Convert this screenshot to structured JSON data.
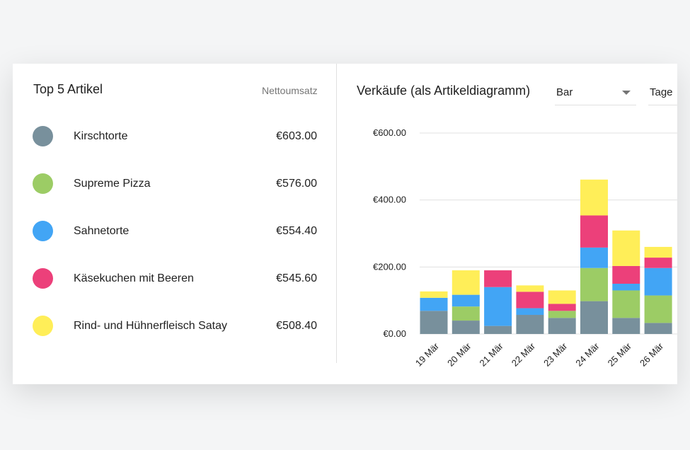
{
  "left_panel": {
    "title": "Top 5 Artikel",
    "column_label": "Nettoumsatz",
    "items": [
      {
        "name": "Kirschtorte",
        "value": "€603.00",
        "color": "#78909c"
      },
      {
        "name": "Supreme Pizza",
        "value": "€576.00",
        "color": "#9ccc65"
      },
      {
        "name": "Sahnetorte",
        "value": "€554.40",
        "color": "#42a5f5"
      },
      {
        "name": "Käsekuchen mit Beeren",
        "value": "€545.60",
        "color": "#ec407a"
      },
      {
        "name": "Rind- und Hühnerfleisch Satay",
        "value": "€508.40",
        "color": "#ffee58"
      }
    ]
  },
  "right_panel": {
    "title": "Verkäufe (als Artikeldiagramm)",
    "chart_type_select": "Bar",
    "period_select": "Tage"
  },
  "chart_data": {
    "type": "bar",
    "stacked": true,
    "categories": [
      "19 Mär",
      "20 Mär",
      "21 Mär",
      "22 Mär",
      "23 Mär",
      "24 Mär",
      "25 Mär",
      "26 Mär"
    ],
    "series": [
      {
        "name": "Kirschtorte",
        "color": "#78909c",
        "values": [
          69,
          40,
          24,
          57,
          48,
          98,
          48,
          33
        ]
      },
      {
        "name": "Supreme Pizza",
        "color": "#9ccc65",
        "values": [
          0,
          42,
          0,
          0,
          21,
          99,
          82,
          82
        ]
      },
      {
        "name": "Sahnetorte",
        "color": "#42a5f5",
        "values": [
          39,
          35,
          116,
          20,
          0,
          61,
          20,
          82
        ]
      },
      {
        "name": "Käsekuchen mit Beeren",
        "color": "#ec407a",
        "values": [
          0,
          0,
          50,
          49,
          21,
          96,
          53,
          31
        ]
      },
      {
        "name": "Rind- und Hühnerfleisch Satay",
        "color": "#ffee58",
        "values": [
          19,
          73,
          0,
          19,
          40,
          107,
          106,
          32
        ]
      }
    ],
    "ylim": [
      0,
      600
    ],
    "yticks": [
      "€0.00",
      "€200.00",
      "€400.00",
      "€600.00"
    ],
    "grid": true
  }
}
